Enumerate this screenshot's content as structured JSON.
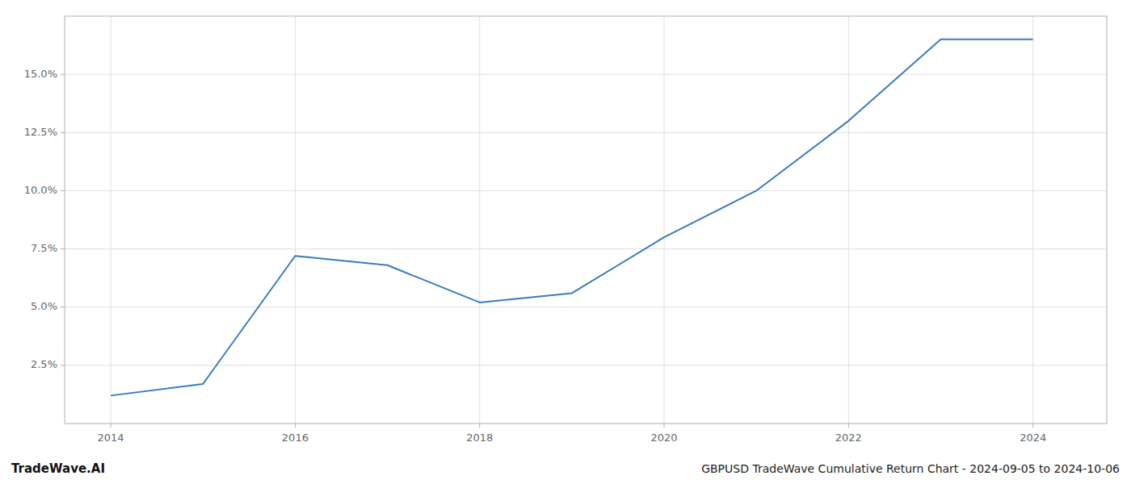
{
  "chart_data": {
    "type": "line",
    "title": "GBPUSD TradeWave Cumulative Return Chart - 2024-09-05 to 2024-10-06",
    "annotations": [
      "TradeWave.AI"
    ],
    "x": [
      2014,
      2015,
      2016,
      2017,
      2018,
      2019,
      2020,
      2021,
      2022,
      2023,
      2024
    ],
    "values": [
      1.2,
      1.7,
      7.2,
      6.8,
      5.2,
      5.6,
      8.0,
      10.0,
      13.0,
      16.5,
      16.5
    ],
    "color": "#3a7bbf",
    "xlim": [
      2013.5,
      2024.8
    ],
    "ylim": [
      0.0,
      17.5
    ],
    "xticks": [
      2014,
      2016,
      2018,
      2020,
      2022,
      2024
    ],
    "yticks": [
      {
        "value": 2.5,
        "label": "2.5%"
      },
      {
        "value": 5.0,
        "label": "5.0%"
      },
      {
        "value": 7.5,
        "label": "7.5%"
      },
      {
        "value": 10.0,
        "label": "10.0%"
      },
      {
        "value": 12.5,
        "label": "12.5%"
      },
      {
        "value": 15.0,
        "label": "15.0%"
      }
    ],
    "grid": true
  }
}
